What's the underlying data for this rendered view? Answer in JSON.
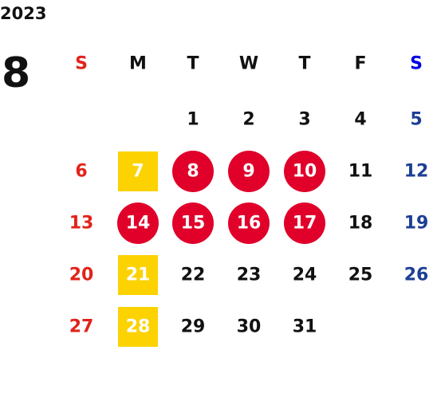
{
  "year": "2023",
  "month": "8",
  "weekdays": [
    "S",
    "M",
    "T",
    "W",
    "T",
    "F",
    "S"
  ],
  "weeks": [
    [
      null,
      null,
      {
        "text": "1"
      },
      {
        "text": "2"
      },
      {
        "text": "3"
      },
      {
        "text": "4"
      },
      {
        "text": "5"
      }
    ],
    [
      {
        "text": "6"
      },
      {
        "text": "7",
        "highlight": "square"
      },
      {
        "text": "8",
        "highlight": "circle"
      },
      {
        "text": "9",
        "highlight": "circle"
      },
      {
        "text": "10",
        "highlight": "circle"
      },
      {
        "text": "11"
      },
      {
        "text": "12"
      }
    ],
    [
      {
        "text": "13"
      },
      {
        "text": "14",
        "highlight": "circle"
      },
      {
        "text": "15",
        "highlight": "circle"
      },
      {
        "text": "16",
        "highlight": "circle"
      },
      {
        "text": "17",
        "highlight": "circle"
      },
      {
        "text": "18"
      },
      {
        "text": "19"
      }
    ],
    [
      {
        "text": "20"
      },
      {
        "text": "21",
        "highlight": "square"
      },
      {
        "text": "22"
      },
      {
        "text": "23"
      },
      {
        "text": "24"
      },
      {
        "text": "25"
      },
      {
        "text": "26"
      }
    ],
    [
      {
        "text": "27"
      },
      {
        "text": "28",
        "highlight": "square"
      },
      {
        "text": "29"
      },
      {
        "text": "30"
      },
      {
        "text": "31"
      },
      null,
      null
    ]
  ]
}
